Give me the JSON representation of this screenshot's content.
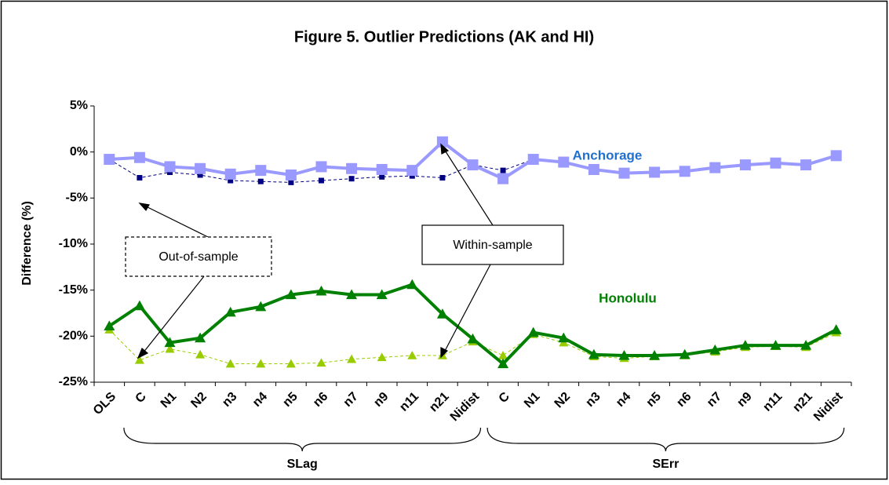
{
  "chart_data": {
    "type": "line",
    "title": "Figure 5. Outlier Predictions (AK and HI)",
    "y_label": "Difference (%)",
    "categories": [
      "OLS",
      "C",
      "N1",
      "N2",
      "n3",
      "n4",
      "n5",
      "n6",
      "n7",
      "n9",
      "n11",
      "n21",
      "Nidist",
      "C",
      "N1",
      "N2",
      "n3",
      "n4",
      "n5",
      "n6",
      "n7",
      "n9",
      "n11",
      "n21",
      "Nidist"
    ],
    "groups": [
      "SLag",
      "SErr"
    ],
    "ylim": [
      -25,
      5
    ],
    "yticks": [
      {
        "value": 5,
        "label": "5%"
      },
      {
        "value": 0,
        "label": "0%"
      },
      {
        "value": -5,
        "label": "-5%"
      },
      {
        "value": -10,
        "label": "-10%"
      },
      {
        "value": -15,
        "label": "-15%"
      },
      {
        "value": -20,
        "label": "-20%"
      },
      {
        "value": -25,
        "label": "-25%"
      }
    ],
    "series": [
      {
        "color": "#000080",
        "dashed": true,
        "marker": "square",
        "values": [
          -0.8,
          -2.8,
          -2.2,
          -2.5,
          -3.1,
          -3.2,
          -3.3,
          -3.1,
          -2.9,
          -2.7,
          -2.6,
          -2.8,
          -1.4,
          -2.0,
          -0.8,
          -1.0,
          -1.9,
          -2.2,
          -2.2,
          -2.0,
          -1.7,
          -1.4,
          -1.2,
          -1.4,
          -0.4
        ]
      },
      {
        "color": "#9999ff",
        "dashed": false,
        "marker": "square",
        "values": [
          -0.8,
          -0.6,
          -1.6,
          -1.8,
          -2.4,
          -2.0,
          -2.5,
          -1.6,
          -1.8,
          -1.9,
          -2.0,
          1.1,
          -1.4,
          -2.9,
          -0.8,
          -1.1,
          -1.9,
          -2.3,
          -2.2,
          -2.1,
          -1.7,
          -1.4,
          -1.2,
          -1.4,
          -0.4
        ]
      },
      {
        "color": "#99cc00",
        "dashed": true,
        "marker": "triangle",
        "values": [
          -19.3,
          -22.6,
          -21.4,
          -22.0,
          -23.0,
          -23.0,
          -23.0,
          -22.9,
          -22.5,
          -22.3,
          -22.1,
          -22.1,
          -20.6,
          -22.1,
          -19.8,
          -20.7,
          -22.2,
          -22.4,
          -22.2,
          -22.1,
          -21.7,
          -21.2,
          -21.1,
          -21.2,
          -19.6
        ]
      },
      {
        "color": "#008000",
        "dashed": false,
        "marker": "triangle",
        "values": [
          -18.9,
          -16.7,
          -20.7,
          -20.2,
          -17.4,
          -16.8,
          -15.5,
          -15.1,
          -15.5,
          -15.5,
          -14.4,
          -17.6,
          -20.3,
          -23.0,
          -19.6,
          -20.2,
          -22.0,
          -22.1,
          -22.1,
          -22.0,
          -21.5,
          -21.0,
          -21.0,
          -21.0,
          -19.3
        ]
      }
    ],
    "annotations": {
      "anchorage": "Anchorage",
      "honolulu": "Honolulu",
      "within": "Within-sample",
      "out": "Out-of-sample"
    }
  }
}
